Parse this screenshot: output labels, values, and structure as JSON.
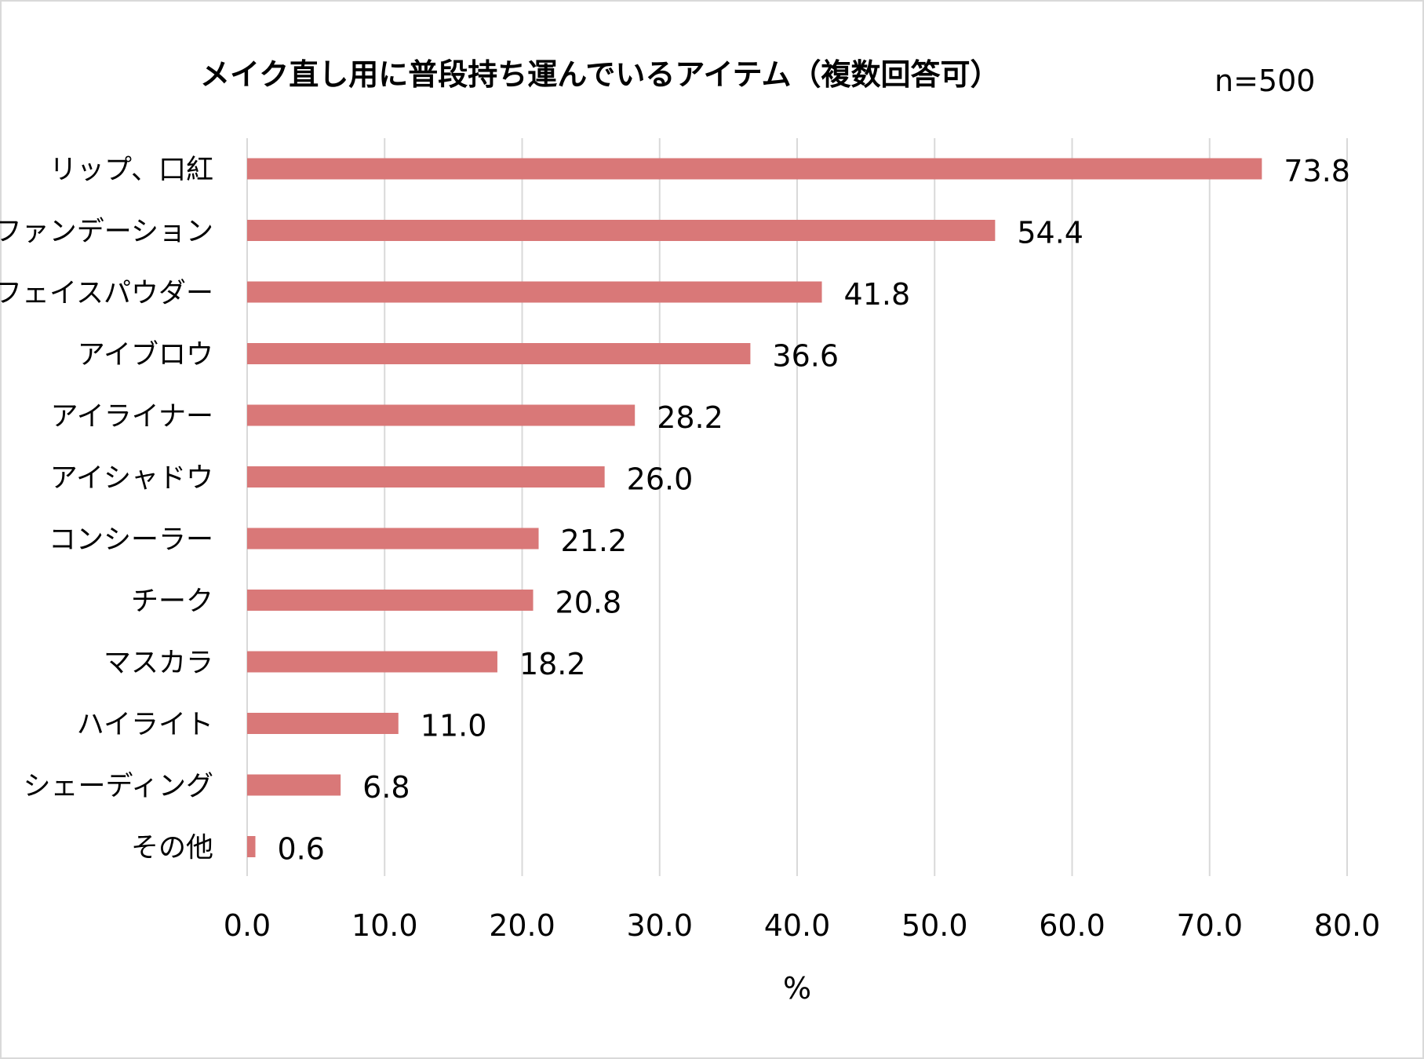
{
  "chart_data": {
    "type": "bar",
    "orientation": "horizontal",
    "title": "メイク直し用に普段持ち運んでいるアイテム（複数回答可）",
    "sample_size_label": "n=500",
    "xlabel": "%",
    "ylabel": "",
    "xlim": [
      0,
      80
    ],
    "x_ticks": [
      0,
      10,
      20,
      30,
      40,
      50,
      60,
      70,
      80
    ],
    "x_tick_labels": [
      "0.0",
      "10.0",
      "20.0",
      "30.0",
      "40.0",
      "50.0",
      "60.0",
      "70.0",
      "80.0"
    ],
    "grid": "vertical",
    "bar_color": "#d97878",
    "categories": [
      "リップ、口紅",
      "ファンデーション",
      "フェイスパウダー",
      "アイブロウ",
      "アイライナー",
      "アイシャドウ",
      "コンシーラー",
      "チーク",
      "マスカラ",
      "ハイライト",
      "シェーディング",
      "その他"
    ],
    "values": [
      73.8,
      54.4,
      41.8,
      36.6,
      28.2,
      26.0,
      21.2,
      20.8,
      18.2,
      11.0,
      6.8,
      0.6
    ],
    "value_labels": [
      "73.8",
      "54.4",
      "41.8",
      "36.6",
      "28.2",
      "26.0",
      "21.2",
      "20.8",
      "18.2",
      "11.0",
      "6.8",
      "0.6"
    ]
  }
}
